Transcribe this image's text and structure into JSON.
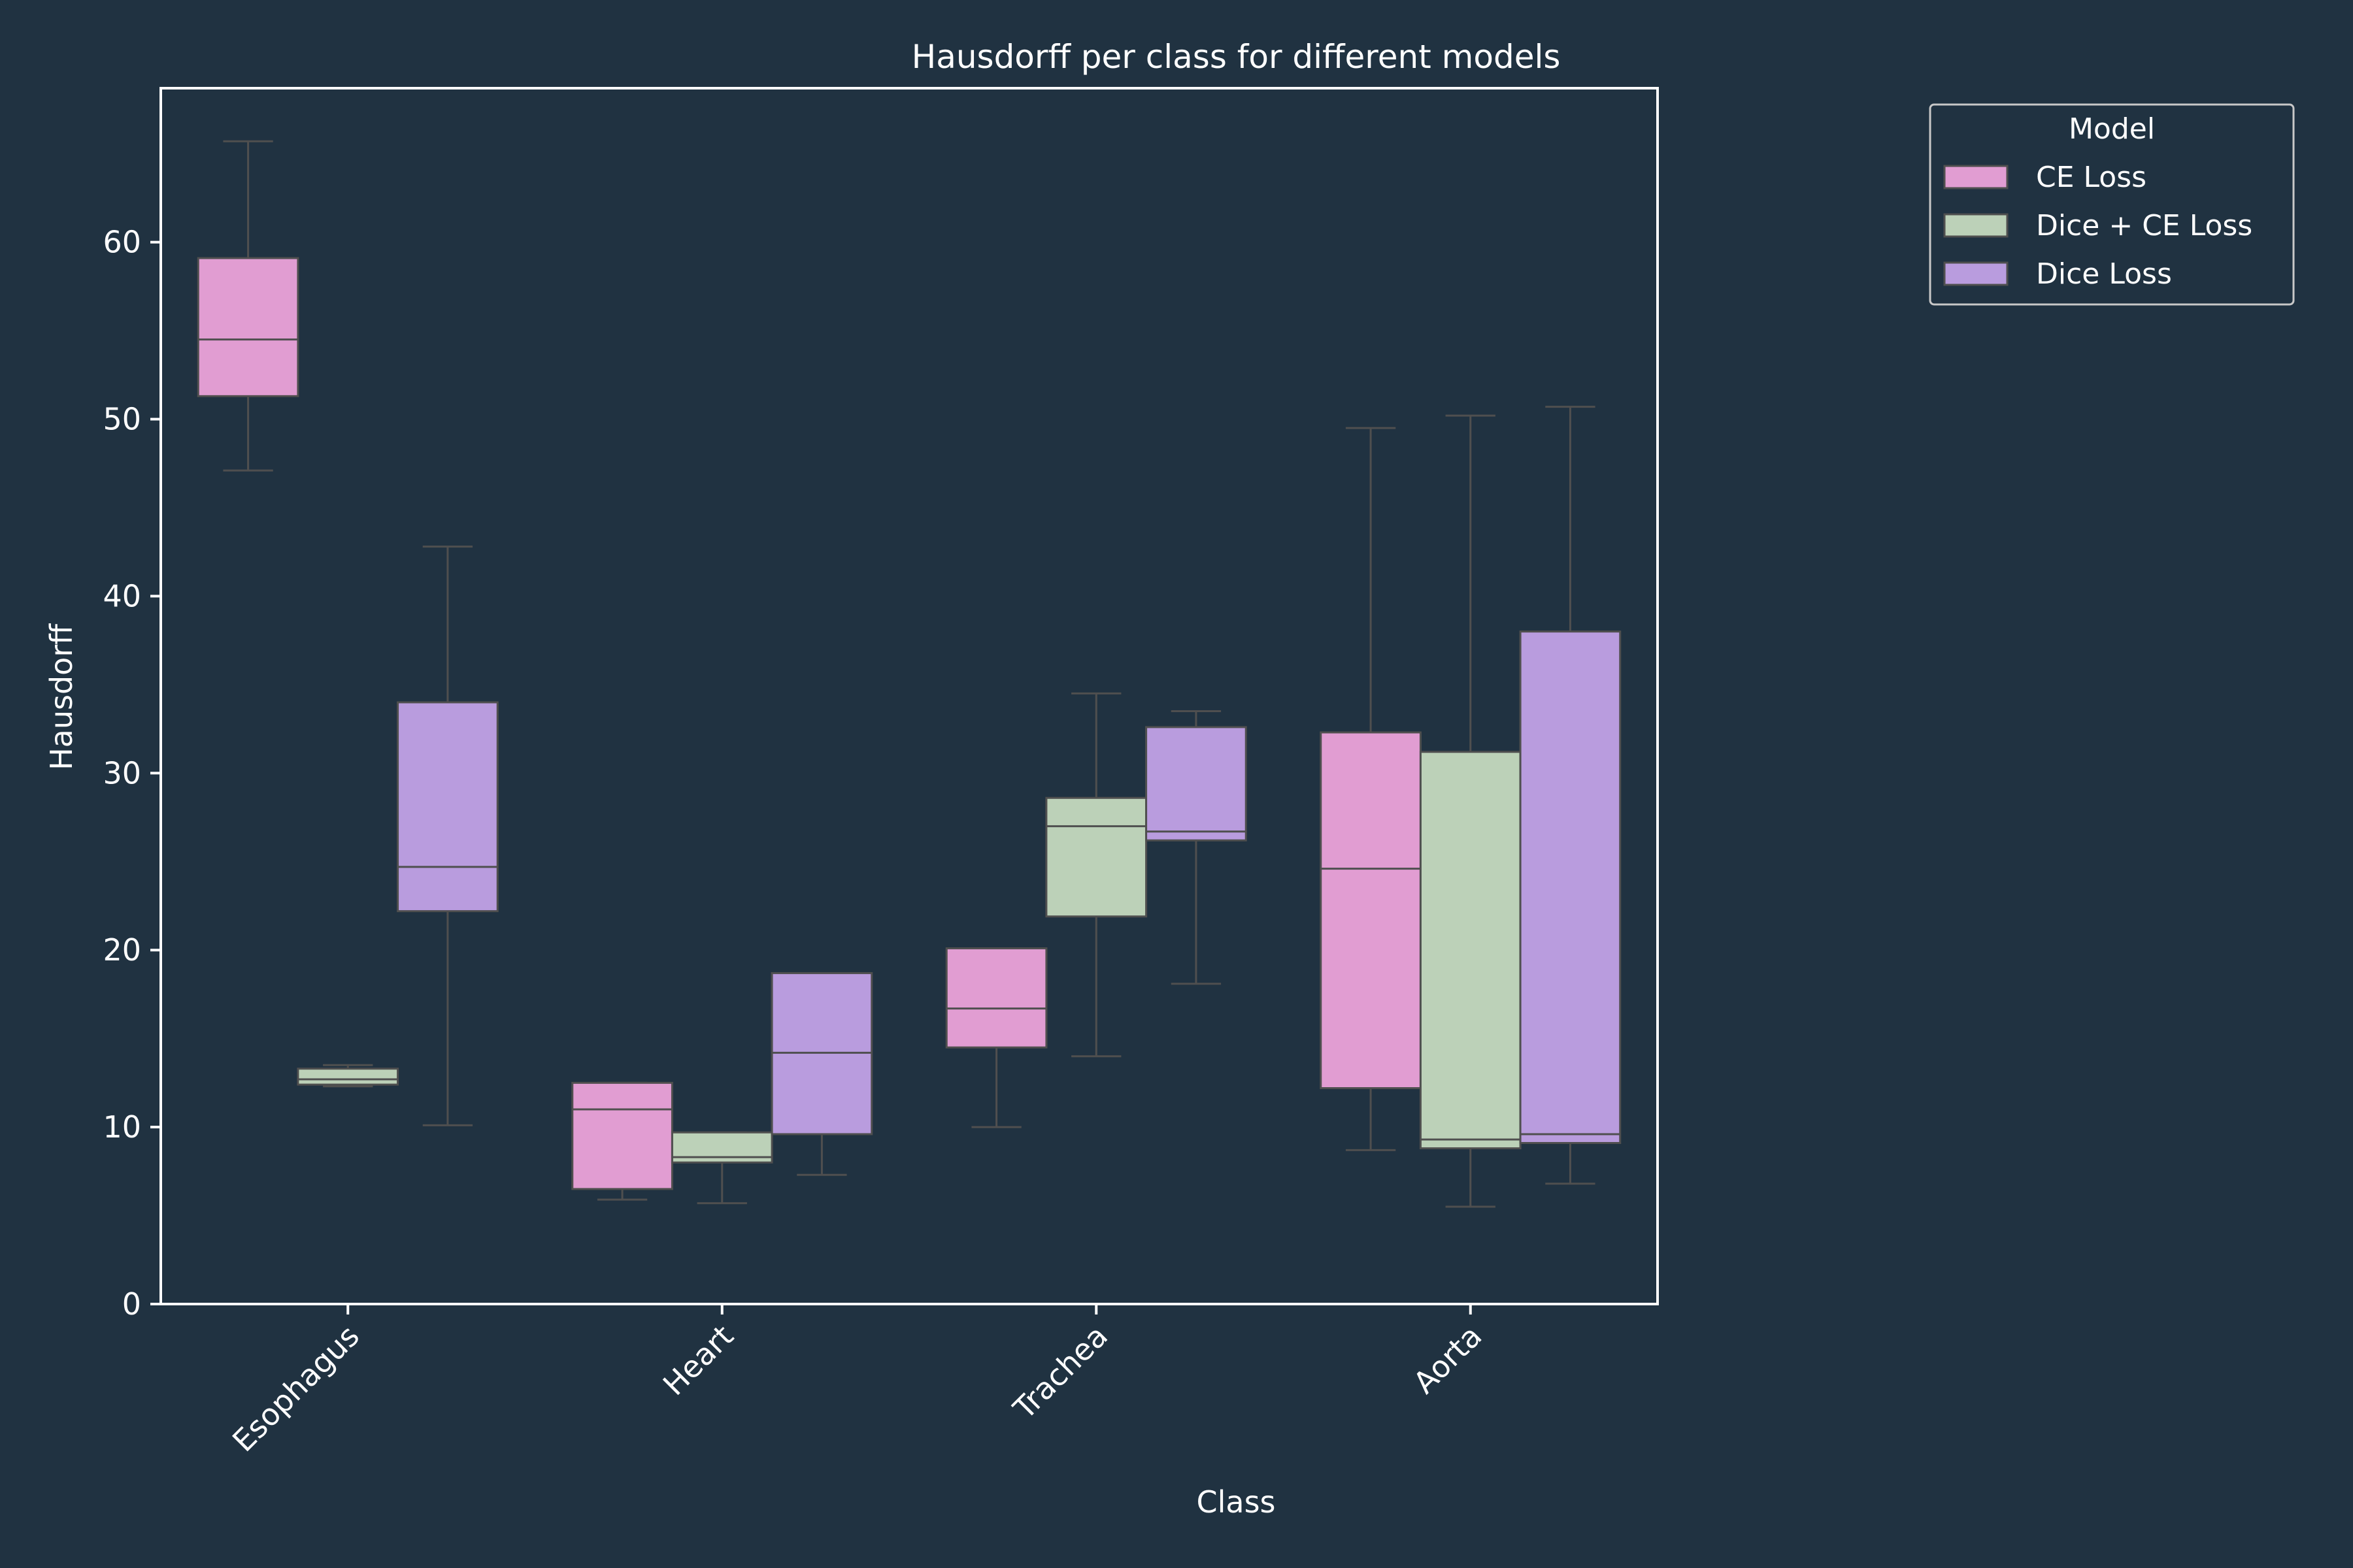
{
  "chart_data": {
    "type": "box",
    "title": "Hausdorff per class for different models",
    "xlabel": "Class",
    "ylabel": "Hausdorff",
    "categories": [
      "Esophagus",
      "Heart",
      "Trachea",
      "Aorta"
    ],
    "yticks": [
      0,
      10,
      20,
      30,
      40,
      50,
      60
    ],
    "ylim": [
      0,
      68.7
    ],
    "legend_title": "Model",
    "legend_position": "top-right",
    "series": [
      {
        "name": "CE Loss",
        "color": "#e19dd2",
        "boxes": [
          {
            "whisker_low": 47.1,
            "q1": 51.3,
            "median": 54.5,
            "q3": 59.1,
            "whisker_high": 65.7
          },
          {
            "whisker_low": 5.9,
            "q1": 6.5,
            "median": 11.0,
            "q3": 12.5,
            "whisker_high": 12.5
          },
          {
            "whisker_low": 10.0,
            "q1": 14.5,
            "median": 16.7,
            "q3": 20.1,
            "whisker_high": 20.1
          },
          {
            "whisker_low": 8.7,
            "q1": 12.2,
            "median": 24.6,
            "q3": 32.3,
            "whisker_high": 49.5
          }
        ]
      },
      {
        "name": "Dice + CE Loss",
        "color": "#bcd1b8",
        "boxes": [
          {
            "whisker_low": 12.3,
            "q1": 12.4,
            "median": 12.7,
            "q3": 13.3,
            "whisker_high": 13.5
          },
          {
            "whisker_low": 5.7,
            "q1": 8.0,
            "median": 8.3,
            "q3": 9.7,
            "whisker_high": 9.7
          },
          {
            "whisker_low": 14.0,
            "q1": 21.9,
            "median": 27.0,
            "q3": 28.6,
            "whisker_high": 34.5
          },
          {
            "whisker_low": 5.5,
            "q1": 8.8,
            "median": 9.3,
            "q3": 31.2,
            "whisker_high": 50.2
          }
        ]
      },
      {
        "name": "Dice Loss",
        "color": "#b99cde",
        "boxes": [
          {
            "whisker_low": 10.1,
            "q1": 22.2,
            "median": 24.7,
            "q3": 34.0,
            "whisker_high": 42.8
          },
          {
            "whisker_low": 7.3,
            "q1": 9.6,
            "median": 14.2,
            "q3": 18.7,
            "whisker_high": 18.7
          },
          {
            "whisker_low": 18.1,
            "q1": 26.2,
            "median": 26.7,
            "q3": 32.6,
            "whisker_high": 33.5
          },
          {
            "whisker_low": 6.8,
            "q1": 9.1,
            "median": 9.6,
            "q3": 38.0,
            "whisker_high": 50.7
          }
        ]
      }
    ]
  },
  "colors": {
    "background": "#203241",
    "axis": "#ffffff",
    "box_edge": "#4f4f4f"
  }
}
